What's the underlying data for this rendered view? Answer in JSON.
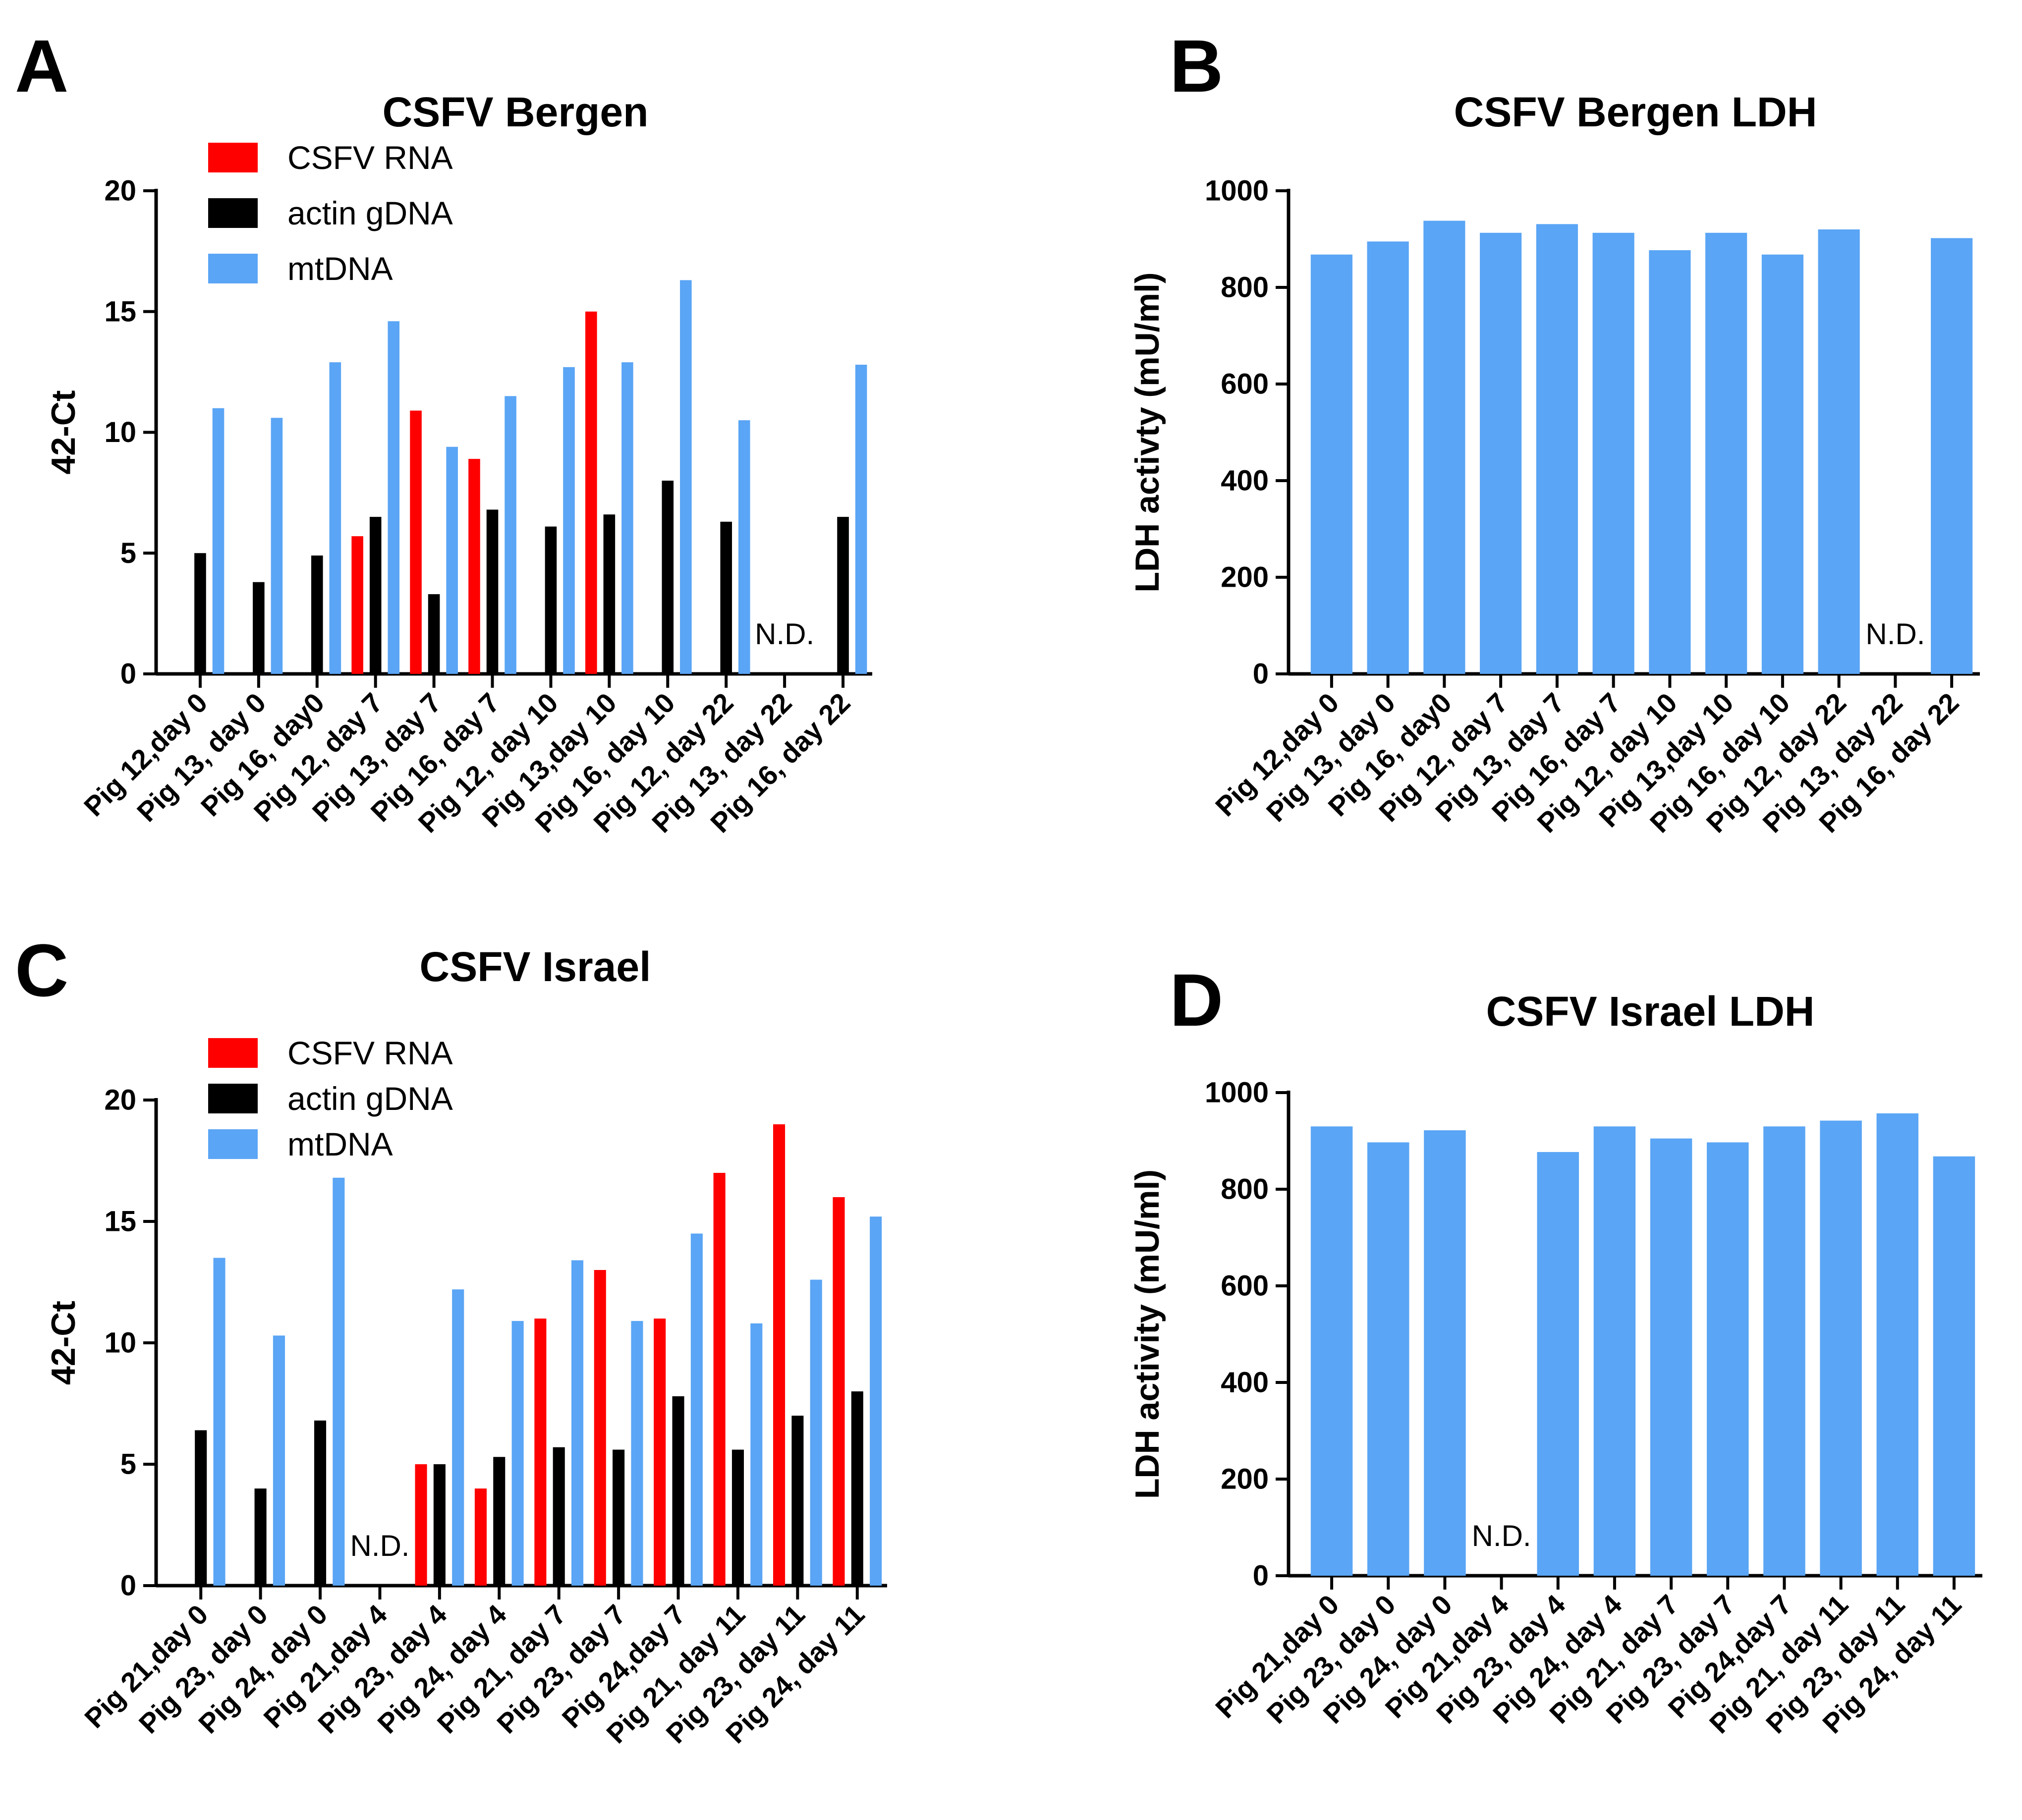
{
  "colors": {
    "csfv_rna": "#ff0000",
    "actin_gdna": "#000000",
    "mtdna": "#5aa5f5",
    "ldh": "#5aa5f5"
  },
  "chart_data": [
    {
      "panel": "A",
      "type": "bar",
      "title": "CSFV Bergen",
      "ylabel": "42-Ct",
      "ylim": [
        0,
        20
      ],
      "yticks": [
        "0",
        "5",
        "10",
        "15",
        "20"
      ],
      "legend": [
        "CSFV RNA",
        "actin gDNA",
        "mtDNA"
      ],
      "categories": [
        "Pig 12,day 0",
        "Pig 13, day 0",
        "Pig 16, day0",
        "Pig 12, day 7",
        "Pig 13, day 7",
        "Pig 16, day 7",
        "Pig 12, day 10",
        "Pig 13,day 10",
        "Pig 16, day 10",
        "Pig 12, day 22",
        "Pig 13, day 22",
        "Pig 16, day 22"
      ],
      "series": [
        {
          "name": "CSFV RNA",
          "values": [
            0,
            0,
            0,
            5.7,
            10.9,
            8.9,
            0,
            15.0,
            0,
            0,
            0,
            0
          ]
        },
        {
          "name": "actin gDNA",
          "values": [
            5.0,
            3.8,
            4.9,
            6.5,
            3.3,
            6.8,
            6.1,
            6.6,
            8.0,
            6.3,
            0,
            6.5
          ]
        },
        {
          "name": "mtDNA",
          "values": [
            11.0,
            10.6,
            12.9,
            14.6,
            9.4,
            11.5,
            12.7,
            12.9,
            16.3,
            10.5,
            0,
            12.8
          ]
        }
      ],
      "nd_label": "N.D."
    },
    {
      "panel": "B",
      "type": "bar",
      "title": "CSFV Bergen LDH",
      "ylabel": "LDH activty (mU/ml)",
      "ylim": [
        0,
        1000
      ],
      "yticks": [
        "0",
        "200",
        "400",
        "600",
        "800",
        "1000"
      ],
      "categories": [
        "Pig 12,day 0",
        "Pig 13, day 0",
        "Pig 16, day0",
        "Pig 12, day 7",
        "Pig 13, day 7",
        "Pig 16, day 7",
        "Pig 12, day 10",
        "Pig 13,day 10",
        "Pig 16, day 10",
        "Pig 12, day 22",
        "Pig 13, day 22",
        "Pig 16, day 22"
      ],
      "series": [
        {
          "name": "LDH",
          "values": [
            868,
            895,
            938,
            913,
            931,
            913,
            877,
            913,
            868,
            920,
            0,
            902
          ]
        }
      ],
      "nd_label": "N.D."
    },
    {
      "panel": "C",
      "type": "bar",
      "title": "CSFV Israel",
      "ylabel": "42-Ct",
      "ylim": [
        0,
        20
      ],
      "yticks": [
        "0",
        "5",
        "10",
        "15",
        "20"
      ],
      "legend": [
        "CSFV RNA",
        "actin gDNA",
        "mtDNA"
      ],
      "categories": [
        "Pig 21,day 0",
        "Pig 23, day 0",
        "Pig 24, day 0",
        "Pig 21,day 4",
        "Pig 23, day 4",
        "Pig 24, day 4",
        "Pig 21, day 7",
        "Pig 23, day 7",
        "Pig 24,day 7",
        "Pig 21, day 11",
        "Pig 23, day 11",
        "Pig 24, day 11"
      ],
      "series": [
        {
          "name": "CSFV RNA",
          "values": [
            0,
            0,
            0,
            0,
            5.0,
            4.0,
            11.0,
            13.0,
            11.0,
            17.0,
            19.0,
            16.0
          ]
        },
        {
          "name": "actin gDNA",
          "values": [
            6.4,
            4.0,
            6.8,
            0,
            5.0,
            5.3,
            5.7,
            5.6,
            7.8,
            5.6,
            7.0,
            8.0
          ]
        },
        {
          "name": "mtDNA",
          "values": [
            13.5,
            10.3,
            16.8,
            0,
            12.2,
            10.9,
            13.4,
            10.9,
            14.5,
            10.8,
            12.6,
            15.2
          ]
        }
      ],
      "nd_label": "N.D."
    },
    {
      "panel": "D",
      "type": "bar",
      "title": "CSFV Israel LDH",
      "ylabel": "LDH activity (mU/ml)",
      "ylim": [
        0,
        1000
      ],
      "yticks": [
        "0",
        "200",
        "400",
        "600",
        "800",
        "1000"
      ],
      "categories": [
        "Pig 21,day 0",
        "Pig 23, day 0",
        "Pig 24, day 0",
        "Pig 21,day 4",
        "Pig 23, day 4",
        "Pig 24, day 4",
        "Pig 21, day 7",
        "Pig 23, day 7",
        "Pig 24,day 7",
        "Pig 21, day 11",
        "Pig 23, day 11",
        "Pig 24, day 11"
      ],
      "series": [
        {
          "name": "LDH",
          "values": [
            930,
            897,
            922,
            0,
            877,
            930,
            905,
            897,
            930,
            942,
            957,
            868
          ]
        }
      ],
      "nd_label": "N.D."
    }
  ]
}
